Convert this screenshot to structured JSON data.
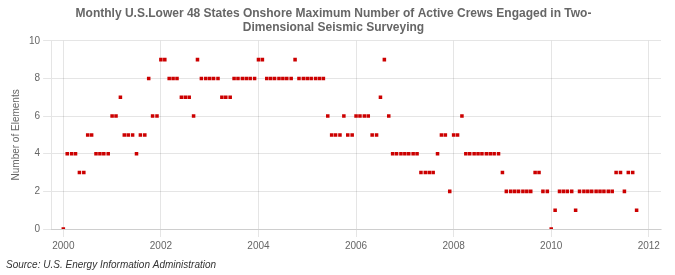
{
  "chart_data": {
    "type": "scatter",
    "title": "Monthly U.S.Lower 48 States Onshore Maximum Number of Active Crews Engaged in Two-\nDimensional Seismic Surveying",
    "y_label": "Number of Elements",
    "annotations": [
      "Source: U.S. Energy Information Administration"
    ],
    "color": "#cc0000",
    "marker": "square",
    "grid": true,
    "xlim": [
      1999.75,
      2012.25
    ],
    "xticks": [
      2000,
      2002,
      2004,
      2006,
      2008,
      2010,
      2012
    ],
    "ylim": [
      0,
      10
    ],
    "yticks": [
      0,
      2,
      4,
      6,
      8,
      10
    ],
    "x": [
      2000.0,
      2000.08,
      2000.17,
      2000.25,
      2000.33,
      2000.42,
      2000.5,
      2000.58,
      2000.67,
      2000.75,
      2000.83,
      2000.92,
      2001.0,
      2001.08,
      2001.17,
      2001.25,
      2001.33,
      2001.42,
      2001.5,
      2001.58,
      2001.67,
      2001.75,
      2001.83,
      2001.92,
      2002.0,
      2002.08,
      2002.17,
      2002.25,
      2002.33,
      2002.42,
      2002.5,
      2002.58,
      2002.67,
      2002.75,
      2002.83,
      2002.92,
      2003.0,
      2003.08,
      2003.17,
      2003.25,
      2003.33,
      2003.42,
      2003.5,
      2003.58,
      2003.67,
      2003.75,
      2003.83,
      2003.92,
      2004.0,
      2004.08,
      2004.17,
      2004.25,
      2004.33,
      2004.42,
      2004.5,
      2004.58,
      2004.67,
      2004.75,
      2004.83,
      2004.92,
      2005.0,
      2005.08,
      2005.17,
      2005.25,
      2005.33,
      2005.42,
      2005.5,
      2005.58,
      2005.67,
      2005.75,
      2005.83,
      2005.92,
      2006.0,
      2006.08,
      2006.17,
      2006.25,
      2006.33,
      2006.42,
      2006.5,
      2006.58,
      2006.67,
      2006.75,
      2006.83,
      2006.92,
      2007.0,
      2007.08,
      2007.17,
      2007.25,
      2007.33,
      2007.42,
      2007.5,
      2007.58,
      2007.67,
      2007.75,
      2007.83,
      2007.92,
      2008.0,
      2008.08,
      2008.17,
      2008.25,
      2008.33,
      2008.42,
      2008.5,
      2008.58,
      2008.67,
      2008.75,
      2008.83,
      2008.92,
      2009.0,
      2009.08,
      2009.17,
      2009.25,
      2009.33,
      2009.42,
      2009.5,
      2009.58,
      2009.67,
      2009.75,
      2009.83,
      2009.92,
      2010.0,
      2010.08,
      2010.17,
      2010.25,
      2010.33,
      2010.42,
      2010.5,
      2010.58,
      2010.67,
      2010.75,
      2010.83,
      2010.92,
      2011.0,
      2011.08,
      2011.17,
      2011.25,
      2011.33,
      2011.42,
      2011.5,
      2011.58,
      2011.67,
      2011.75
    ],
    "values": [
      0,
      4,
      4,
      4,
      3,
      3,
      5,
      5,
      4,
      4,
      4,
      4,
      6,
      6,
      7,
      5,
      5,
      5,
      4,
      5,
      5,
      8,
      6,
      6,
      9,
      9,
      8,
      8,
      8,
      7,
      7,
      7,
      6,
      9,
      8,
      8,
      8,
      8,
      8,
      7,
      7,
      7,
      8,
      8,
      8,
      8,
      8,
      8,
      9,
      9,
      8,
      8,
      8,
      8,
      8,
      8,
      8,
      9,
      8,
      8,
      8,
      8,
      8,
      8,
      8,
      6,
      5,
      5,
      5,
      6,
      5,
      5,
      6,
      6,
      6,
      6,
      5,
      5,
      7,
      9,
      6,
      4,
      4,
      4,
      4,
      4,
      4,
      4,
      3,
      3,
      3,
      3,
      4,
      5,
      5,
      2,
      5,
      5,
      6,
      4,
      4,
      4,
      4,
      4,
      4,
      4,
      4,
      4,
      3,
      2,
      2,
      2,
      2,
      2,
      2,
      2,
      3,
      3,
      2,
      2,
      0,
      1,
      2,
      2,
      2,
      2,
      1,
      2,
      2,
      2,
      2,
      2,
      2,
      2,
      2,
      2,
      3,
      3,
      2,
      3,
      3,
      1
    ]
  }
}
